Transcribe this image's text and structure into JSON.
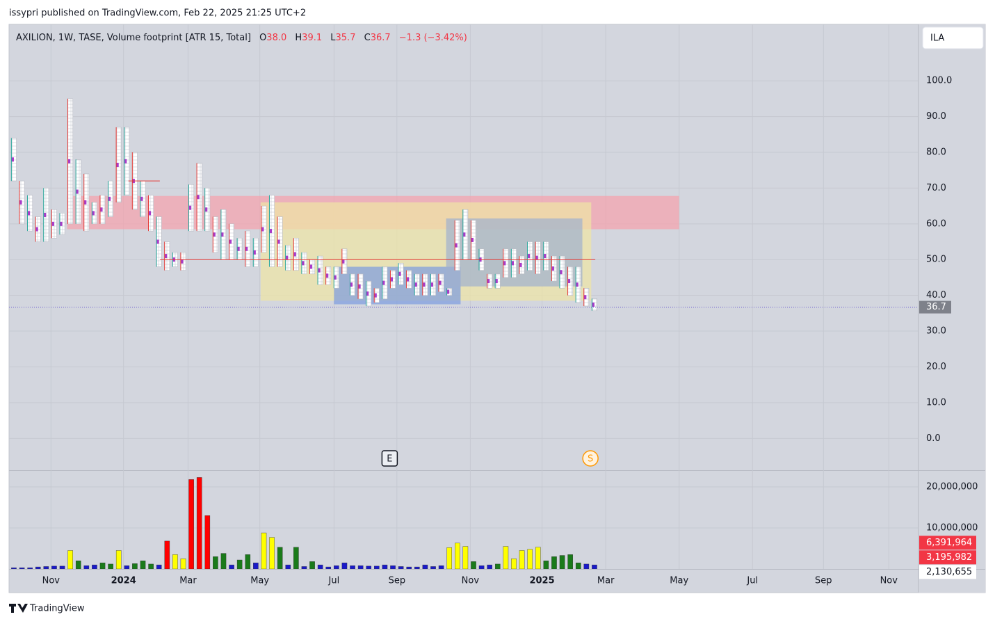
{
  "header": {
    "publisher": "issypri published on TradingView.com, Feb 22, 2025 21:25 UTC+2",
    "currency": "ILA"
  },
  "footer": {
    "brand": "TradingView"
  },
  "chart_data": [
    {
      "type": "footprint",
      "title": "AXILION, 1W, TASE, Volume footprint [ATR 15, Total]",
      "ohlc_labels": {
        "open": "O",
        "high": "H",
        "low": "L",
        "close": "C"
      },
      "open": 38.0,
      "high_last": 39.1,
      "low_last": 35.7,
      "close": 36.7,
      "change_label": "−1.3 (−3.42%)",
      "last_price": {
        "value": 36.7,
        "label": "36.7"
      },
      "xlim": [
        -0.6,
        112.1
      ],
      "xticks": [
        {
          "value": 4.6,
          "label": "Nov"
        },
        {
          "value": 13.6,
          "label": "2024"
        },
        {
          "value": 21.6,
          "label": "Mar"
        },
        {
          "value": 30.5,
          "label": "May"
        },
        {
          "value": 39.7,
          "label": "Jul"
        },
        {
          "value": 47.5,
          "label": "Sep"
        },
        {
          "value": 56.6,
          "label": "Nov"
        },
        {
          "value": 65.5,
          "label": "2025"
        },
        {
          "value": 73.4,
          "label": "Mar"
        },
        {
          "value": 82.5,
          "label": "May"
        },
        {
          "value": 91.6,
          "label": "Jul"
        },
        {
          "value": 100.4,
          "label": "Sep"
        },
        {
          "value": 108.5,
          "label": "Nov"
        }
      ],
      "ylim": [
        -8.9,
        115.8
      ],
      "yticks": [
        {
          "value": 0,
          "label": "0.0"
        },
        {
          "value": 10,
          "label": "10.0"
        },
        {
          "value": 20,
          "label": "20.0"
        },
        {
          "value": 30,
          "label": "30.0"
        },
        {
          "value": 40,
          "label": "40.0"
        },
        {
          "value": 50,
          "label": "50.0"
        },
        {
          "value": 60,
          "label": "60.0"
        },
        {
          "value": 70,
          "label": "70.0"
        },
        {
          "value": 80,
          "label": "80.0"
        },
        {
          "value": 90,
          "label": "90.0"
        },
        {
          "value": 100,
          "label": "100.0"
        }
      ],
      "grid": true,
      "high": [
        84,
        72,
        68,
        62,
        70,
        64,
        63,
        95,
        78,
        74,
        66,
        68,
        72,
        87,
        87,
        80,
        72,
        68,
        62,
        55,
        52,
        52,
        71,
        77,
        70,
        62,
        64,
        60,
        56,
        58,
        56,
        65,
        68,
        62,
        54,
        56,
        52,
        50,
        51,
        48,
        48,
        53,
        46,
        46,
        44,
        42,
        48,
        47,
        49,
        47,
        46,
        46,
        46,
        46,
        42,
        61,
        64,
        61,
        53,
        46,
        46,
        53,
        53,
        51,
        55,
        55,
        55,
        51,
        51,
        48,
        48,
        42,
        39.1
      ],
      "low": [
        72,
        60,
        58,
        55,
        55,
        56,
        57,
        60,
        60,
        58,
        60,
        60,
        62,
        66,
        68,
        64,
        62,
        58,
        48,
        47,
        48,
        47,
        58,
        58,
        58,
        52,
        50,
        50,
        50,
        48,
        48,
        52,
        48,
        48,
        47,
        47,
        46,
        46,
        43,
        43,
        42,
        46,
        40,
        39,
        37,
        38,
        39,
        42,
        43,
        42,
        40,
        40,
        40,
        41,
        40,
        47,
        50,
        50,
        47,
        42,
        42,
        45,
        45,
        46,
        47,
        46,
        47,
        44,
        42,
        40,
        38,
        37,
        35.7
      ],
      "zones": [
        {
          "x0": 6.6,
          "x1": 82.5,
          "y0": 58.5,
          "y1": 67.8,
          "color": "#f7a1ad"
        },
        {
          "x0": 30.6,
          "x1": 71.6,
          "y0": 38.5,
          "y1": 66,
          "color": "#efe6a4"
        },
        {
          "x0": 39.7,
          "x1": 55.4,
          "y0": 37.5,
          "y1": 48,
          "color": "#7c9be0"
        },
        {
          "x0": 53.6,
          "x1": 70.5,
          "y0": 42.5,
          "y1": 61.5,
          "color": "#9fb0cf"
        }
      ],
      "levels": [
        {
          "x0": 14.2,
          "x1": 18.1,
          "value": 72,
          "color": "#e53935"
        },
        {
          "x0": 18.1,
          "x1": 72.1,
          "value": 50,
          "color": "#e53935"
        }
      ],
      "events": [
        {
          "x": 46.6,
          "label": "E"
        },
        {
          "x": 71.5,
          "label": "S"
        }
      ]
    },
    {
      "type": "bar",
      "ylim": [
        0,
        23900000
      ],
      "yticks": [
        {
          "value": 10000000,
          "label": "10,000,000"
        },
        {
          "value": 20000000,
          "label": "20,000,000"
        }
      ],
      "values": [
        300000,
        300000,
        300000,
        500000,
        600000,
        700000,
        700000,
        4500000,
        2000000,
        800000,
        1000000,
        1500000,
        1200000,
        4500000,
        800000,
        1300000,
        2000000,
        1200000,
        1000000,
        6800000,
        3500000,
        2500000,
        21800000,
        22300000,
        13000000,
        3000000,
        3800000,
        1000000,
        2200000,
        3500000,
        1500000,
        8800000,
        7700000,
        5300000,
        1000000,
        5300000,
        600000,
        1800000,
        1000000,
        500000,
        800000,
        1500000,
        800000,
        800000,
        700000,
        700000,
        1000000,
        800000,
        600000,
        500000,
        500000,
        1000000,
        600000,
        800000,
        5200000,
        6300000,
        5500000,
        1800000,
        800000,
        1000000,
        1200000,
        5500000,
        2500000,
        4500000,
        4800000,
        5300000,
        2000000,
        3000000,
        3300000,
        3500000,
        1500000,
        1200000,
        1000000
      ],
      "colors": [
        "#1a1ac8",
        "#1a1ac8",
        "#1a1ac8",
        "#1a1ac8",
        "#1a1ac8",
        "#1a1ac8",
        "#1a1ac8",
        "#ffff00",
        "#1a7a1a",
        "#1a1ac8",
        "#1a1ac8",
        "#1a7a1a",
        "#1a7a1a",
        "#ffff00",
        "#1a1ac8",
        "#1a7a1a",
        "#1a7a1a",
        "#1a7a1a",
        "#1a1ac8",
        "#ff0000",
        "#ffff00",
        "#ffff00",
        "#ff0000",
        "#ff0000",
        "#ff0000",
        "#1a7a1a",
        "#1a7a1a",
        "#1a1ac8",
        "#1a7a1a",
        "#1a7a1a",
        "#1a1ac8",
        "#ffff00",
        "#ffff00",
        "#1a7a1a",
        "#1a1ac8",
        "#1a7a1a",
        "#1a1ac8",
        "#1a7a1a",
        "#1a1ac8",
        "#1a1ac8",
        "#1a1ac8",
        "#1a1ac8",
        "#1a1ac8",
        "#1a1ac8",
        "#1a1ac8",
        "#1a1ac8",
        "#1a1ac8",
        "#1a1ac8",
        "#1a1ac8",
        "#1a1ac8",
        "#1a1ac8",
        "#1a1ac8",
        "#1a1ac8",
        "#1a1ac8",
        "#ffff00",
        "#ffff00",
        "#ffff00",
        "#1a7a1a",
        "#1a1ac8",
        "#1a1ac8",
        "#1a7a1a",
        "#ffff00",
        "#ffff00",
        "#ffff00",
        "#ffff00",
        "#ffff00",
        "#1a7a1a",
        "#1a7a1a",
        "#1a7a1a",
        "#1a7a1a",
        "#1a7a1a",
        "#1a1ac8",
        "#1a1ac8"
      ],
      "value_labels": [
        {
          "value": 6391964,
          "label": "6,391,964"
        },
        {
          "value": 3195982,
          "label": "3,195,982"
        },
        {
          "value": 2130655,
          "label": "2,130,655"
        }
      ]
    }
  ]
}
